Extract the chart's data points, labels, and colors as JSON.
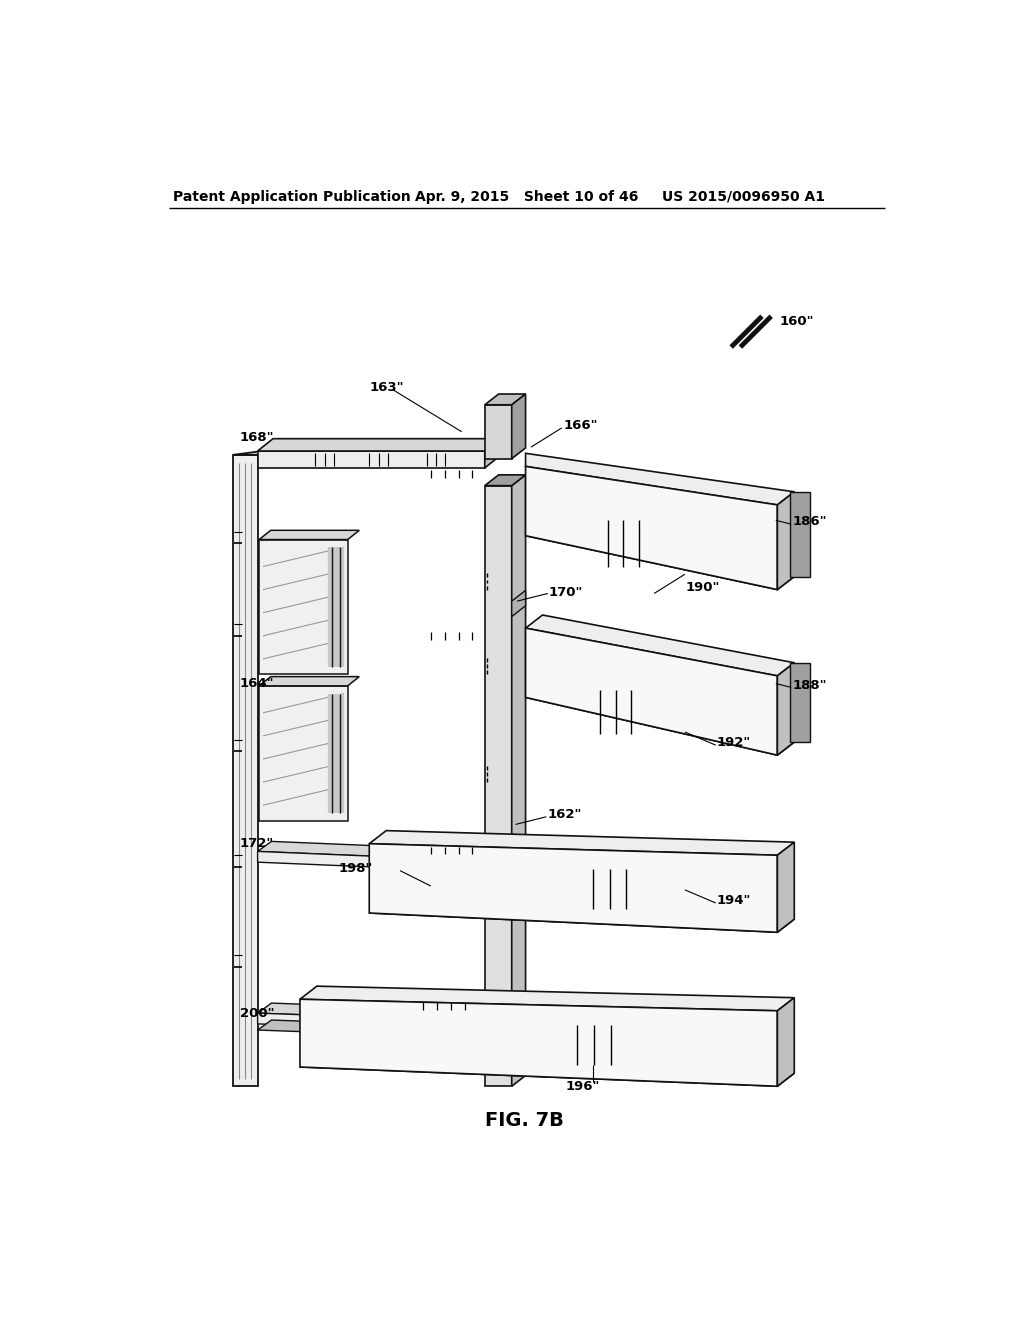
{
  "bg_color": "#ffffff",
  "header_left": "Patent Application Publication",
  "header_center": "Apr. 9, 2015   Sheet 10 of 46",
  "header_right": "US 2015/0096950 A1",
  "figure_label": "FIG. 7B"
}
